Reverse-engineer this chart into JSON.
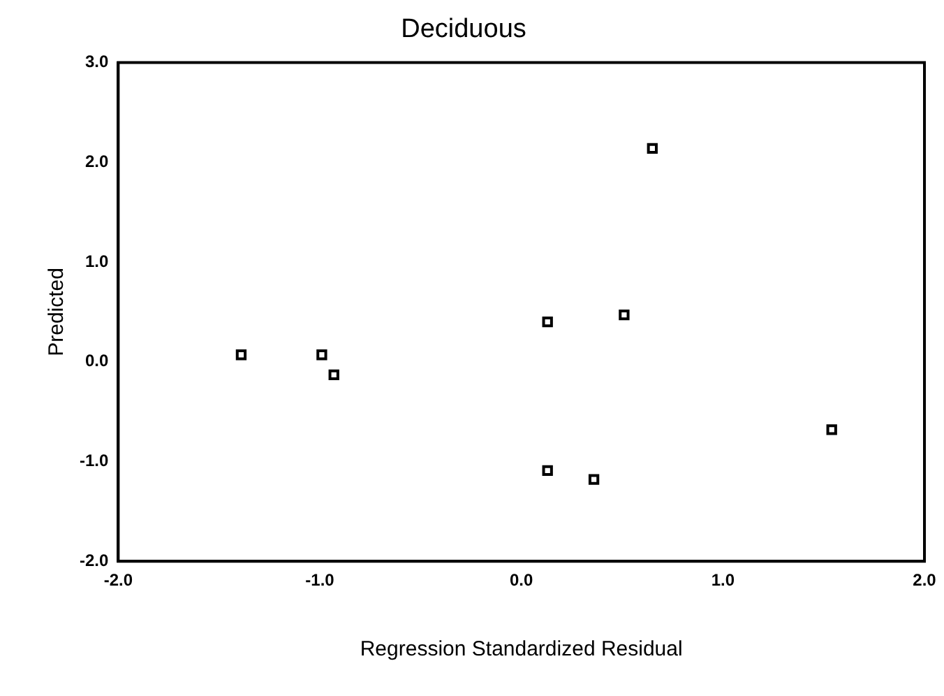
{
  "chart_data": {
    "type": "scatter",
    "title": "Deciduous",
    "xlabel": "Regression Standardized Residual",
    "ylabel": "Predicted",
    "x": [
      -1.39,
      -0.99,
      -0.93,
      0.13,
      0.51,
      0.65,
      1.54,
      0.13,
      0.36
    ],
    "values": [
      0.07,
      0.07,
      -0.13,
      0.4,
      0.47,
      2.14,
      -0.68,
      -1.09,
      -1.18
    ],
    "color": "#000000",
    "marker": "square",
    "xlim": [
      -2,
      2
    ],
    "xticks": [
      {
        "value": -2,
        "label": "-2.0"
      },
      {
        "value": -1,
        "label": "-1.0"
      },
      {
        "value": 0,
        "label": "0.0"
      },
      {
        "value": 1,
        "label": "1.0"
      },
      {
        "value": 2,
        "label": "2.0"
      }
    ],
    "ylim": [
      -2,
      3
    ],
    "yticks": [
      {
        "value": -2,
        "label": "-2.0"
      },
      {
        "value": -1,
        "label": "-1.0"
      },
      {
        "value": 0,
        "label": "0.0"
      },
      {
        "value": 1,
        "label": "1.0"
      },
      {
        "value": 2,
        "label": "2.0"
      },
      {
        "value": 3,
        "label": "3.0"
      }
    ],
    "grid": false,
    "legend": false
  }
}
